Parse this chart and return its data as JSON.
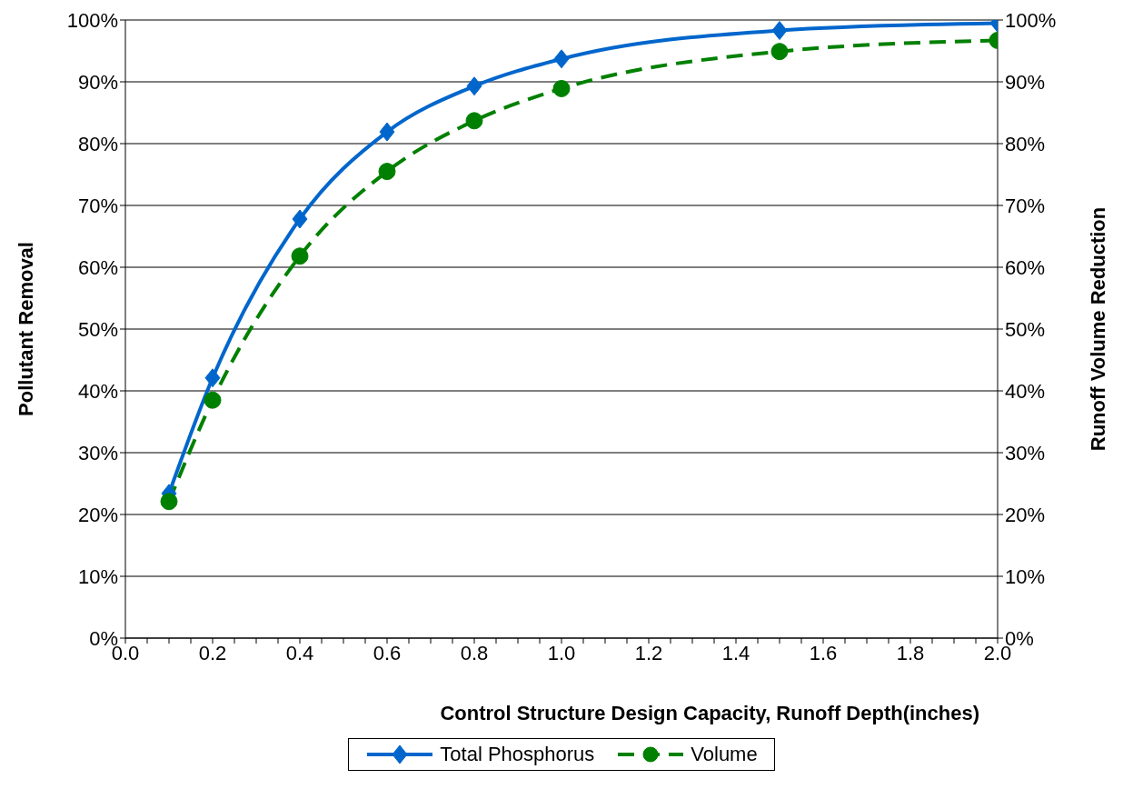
{
  "chart_data": {
    "type": "line",
    "xlabel": "Control Structure Design Capacity, Runoff Depth(inches)",
    "ylabel": "Pollutant Removal",
    "y2label": "Runoff Volume Reduction",
    "x": [
      0.1,
      0.2,
      0.4,
      0.6,
      0.8,
      1.0,
      1.5,
      2.0
    ],
    "series": [
      {
        "name": "Total Phosphorus",
        "color": "#0066cc",
        "values": [
          23.4,
          42.1,
          67.8,
          81.9,
          89.3,
          93.7,
          98.3,
          99.5
        ],
        "marker": "diamond",
        "line_style": "solid"
      },
      {
        "name": "Volume",
        "color": "#008000",
        "values": [
          22.1,
          38.5,
          61.8,
          75.5,
          83.7,
          88.9,
          94.9,
          96.7
        ],
        "marker": "circle",
        "line_style": "dashed"
      }
    ],
    "xlim": [
      0,
      2
    ],
    "xticks": [
      {
        "value": 0,
        "label": "0.0"
      },
      {
        "value": 0.05,
        "label": null
      },
      {
        "value": 0.1,
        "label": null
      },
      {
        "value": 0.15,
        "label": null
      },
      {
        "value": 0.2,
        "label": "0.2"
      },
      {
        "value": 0.25,
        "label": null
      },
      {
        "value": 0.3,
        "label": null
      },
      {
        "value": 0.35,
        "label": null
      },
      {
        "value": 0.4,
        "label": "0.4"
      },
      {
        "value": 0.45,
        "label": null
      },
      {
        "value": 0.5,
        "label": null
      },
      {
        "value": 0.55,
        "label": null
      },
      {
        "value": 0.6,
        "label": "0.6"
      },
      {
        "value": 0.65,
        "label": null
      },
      {
        "value": 0.7,
        "label": null
      },
      {
        "value": 0.75,
        "label": null
      },
      {
        "value": 0.8,
        "label": "0.8"
      },
      {
        "value": 0.85,
        "label": null
      },
      {
        "value": 0.9,
        "label": null
      },
      {
        "value": 0.95,
        "label": null
      },
      {
        "value": 1.0,
        "label": "1.0"
      },
      {
        "value": 1.05,
        "label": null
      },
      {
        "value": 1.1,
        "label": null
      },
      {
        "value": 1.15,
        "label": null
      },
      {
        "value": 1.2,
        "label": "1.2"
      },
      {
        "value": 1.25,
        "label": null
      },
      {
        "value": 1.3,
        "label": null
      },
      {
        "value": 1.35,
        "label": null
      },
      {
        "value": 1.4,
        "label": "1.4"
      },
      {
        "value": 1.45,
        "label": null
      },
      {
        "value": 1.5,
        "label": null
      },
      {
        "value": 1.55,
        "label": null
      },
      {
        "value": 1.6,
        "label": "1.6"
      },
      {
        "value": 1.65,
        "label": null
      },
      {
        "value": 1.7,
        "label": null
      },
      {
        "value": 1.75,
        "label": null
      },
      {
        "value": 1.8,
        "label": "1.8"
      },
      {
        "value": 1.85,
        "label": null
      },
      {
        "value": 1.9,
        "label": null
      },
      {
        "value": 1.95,
        "label": null
      },
      {
        "value": 2.0,
        "label": "2.0"
      }
    ],
    "ylim": [
      0,
      100
    ],
    "yticks": [
      {
        "value": 0,
        "label": "0%"
      },
      {
        "value": 10,
        "label": "10%"
      },
      {
        "value": 20,
        "label": "20%"
      },
      {
        "value": 30,
        "label": "30%"
      },
      {
        "value": 40,
        "label": "40%"
      },
      {
        "value": 50,
        "label": "50%"
      },
      {
        "value": 60,
        "label": "60%"
      },
      {
        "value": 70,
        "label": "70%"
      },
      {
        "value": 80,
        "label": "80%"
      },
      {
        "value": 90,
        "label": "90%"
      },
      {
        "value": 100,
        "label": "100%"
      }
    ],
    "y2lim": [
      0,
      100
    ],
    "y2ticks": [
      {
        "value": 0,
        "label": "0%"
      },
      {
        "value": 10,
        "label": "10%"
      },
      {
        "value": 20,
        "label": "20%"
      },
      {
        "value": 30,
        "label": "30%"
      },
      {
        "value": 40,
        "label": "40%"
      },
      {
        "value": 50,
        "label": "50%"
      },
      {
        "value": 60,
        "label": "60%"
      },
      {
        "value": 70,
        "label": "70%"
      },
      {
        "value": 80,
        "label": "80%"
      },
      {
        "value": 90,
        "label": "90%"
      },
      {
        "value": 100,
        "label": "100%"
      }
    ],
    "grid": "y",
    "legend": "bottom"
  }
}
